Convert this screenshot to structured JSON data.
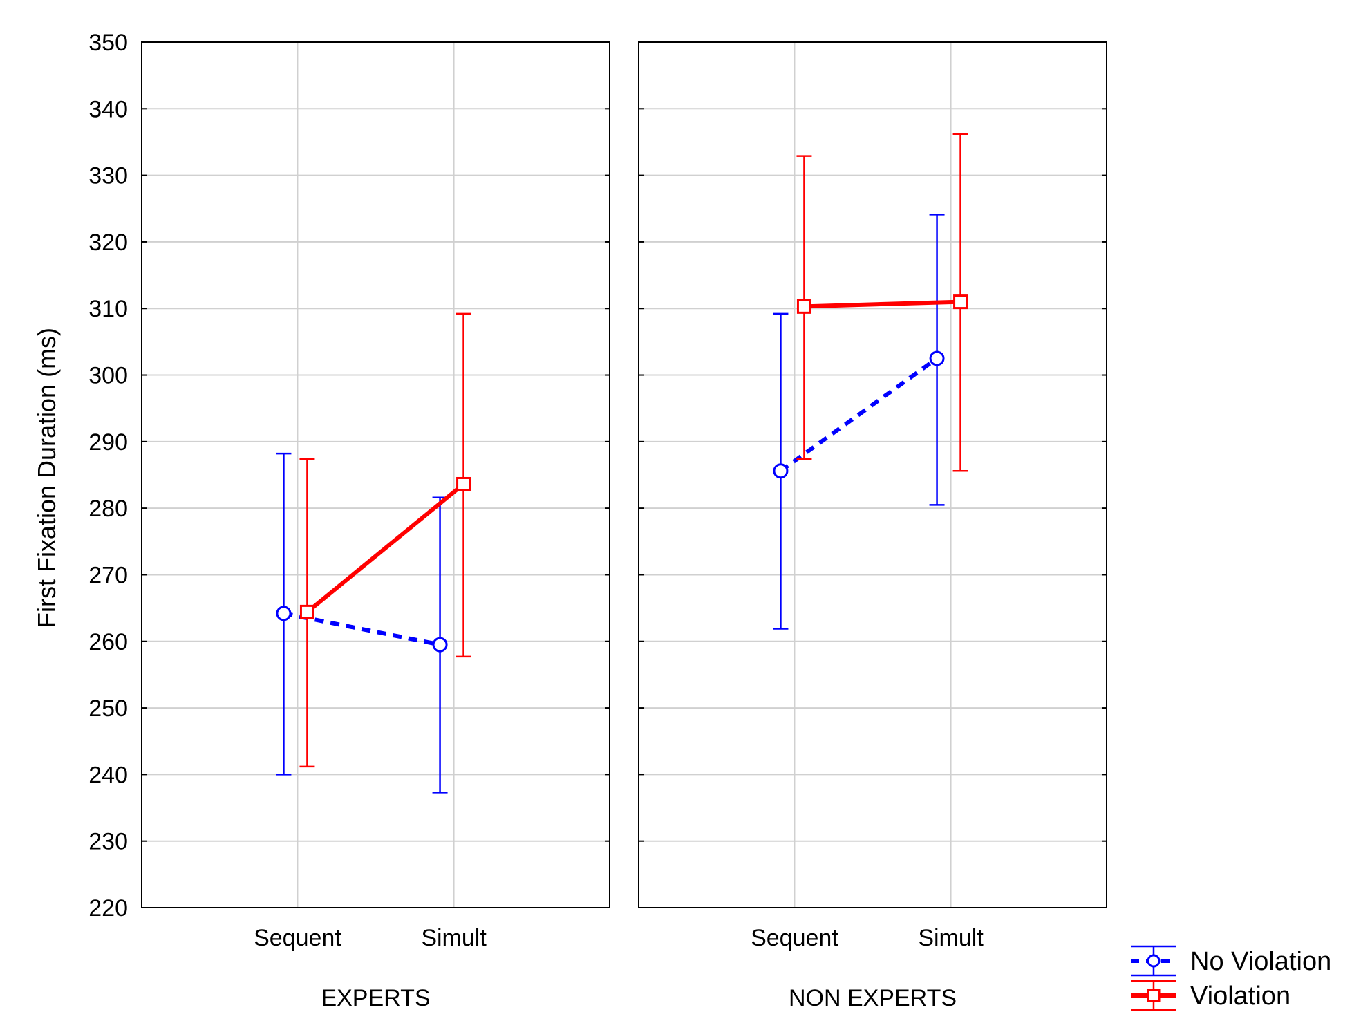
{
  "chart_data": {
    "type": "line",
    "ylabel": "First Fixation Duration (ms)",
    "ylim": [
      220,
      350
    ],
    "yticks": [
      220,
      230,
      240,
      250,
      260,
      270,
      280,
      290,
      300,
      310,
      320,
      330,
      340,
      350
    ],
    "grid": true,
    "legend_position": "bottom-right",
    "categories": [
      "Sequent",
      "Simult"
    ],
    "panels": [
      {
        "label": "EXPERTS",
        "series": [
          {
            "name": "No Violation",
            "color": "#0000ff",
            "marker": "circle",
            "dashed": true,
            "values": [
              264.2,
              259.5
            ],
            "lower": [
              240.0,
              237.3
            ],
            "upper": [
              288.2,
              281.6
            ]
          },
          {
            "name": "Violation",
            "color": "#ff0000",
            "marker": "square",
            "dashed": false,
            "values": [
              264.4,
              283.6
            ],
            "lower": [
              241.2,
              257.7
            ],
            "upper": [
              287.4,
              309.2
            ]
          }
        ]
      },
      {
        "label": "NON EXPERTS",
        "series": [
          {
            "name": "No Violation",
            "color": "#0000ff",
            "marker": "circle",
            "dashed": true,
            "values": [
              285.6,
              302.5
            ],
            "lower": [
              261.9,
              280.5
            ],
            "upper": [
              309.2,
              324.1
            ]
          },
          {
            "name": "Violation",
            "color": "#ff0000",
            "marker": "square",
            "dashed": false,
            "values": [
              310.3,
              311.0
            ],
            "lower": [
              287.4,
              285.6
            ],
            "upper": [
              332.9,
              336.2
            ]
          }
        ]
      }
    ],
    "legend": [
      {
        "name": "No Violation",
        "color": "#0000ff",
        "marker": "circle",
        "dashed": true
      },
      {
        "name": "Violation",
        "color": "#ff0000",
        "marker": "square",
        "dashed": false
      }
    ]
  }
}
